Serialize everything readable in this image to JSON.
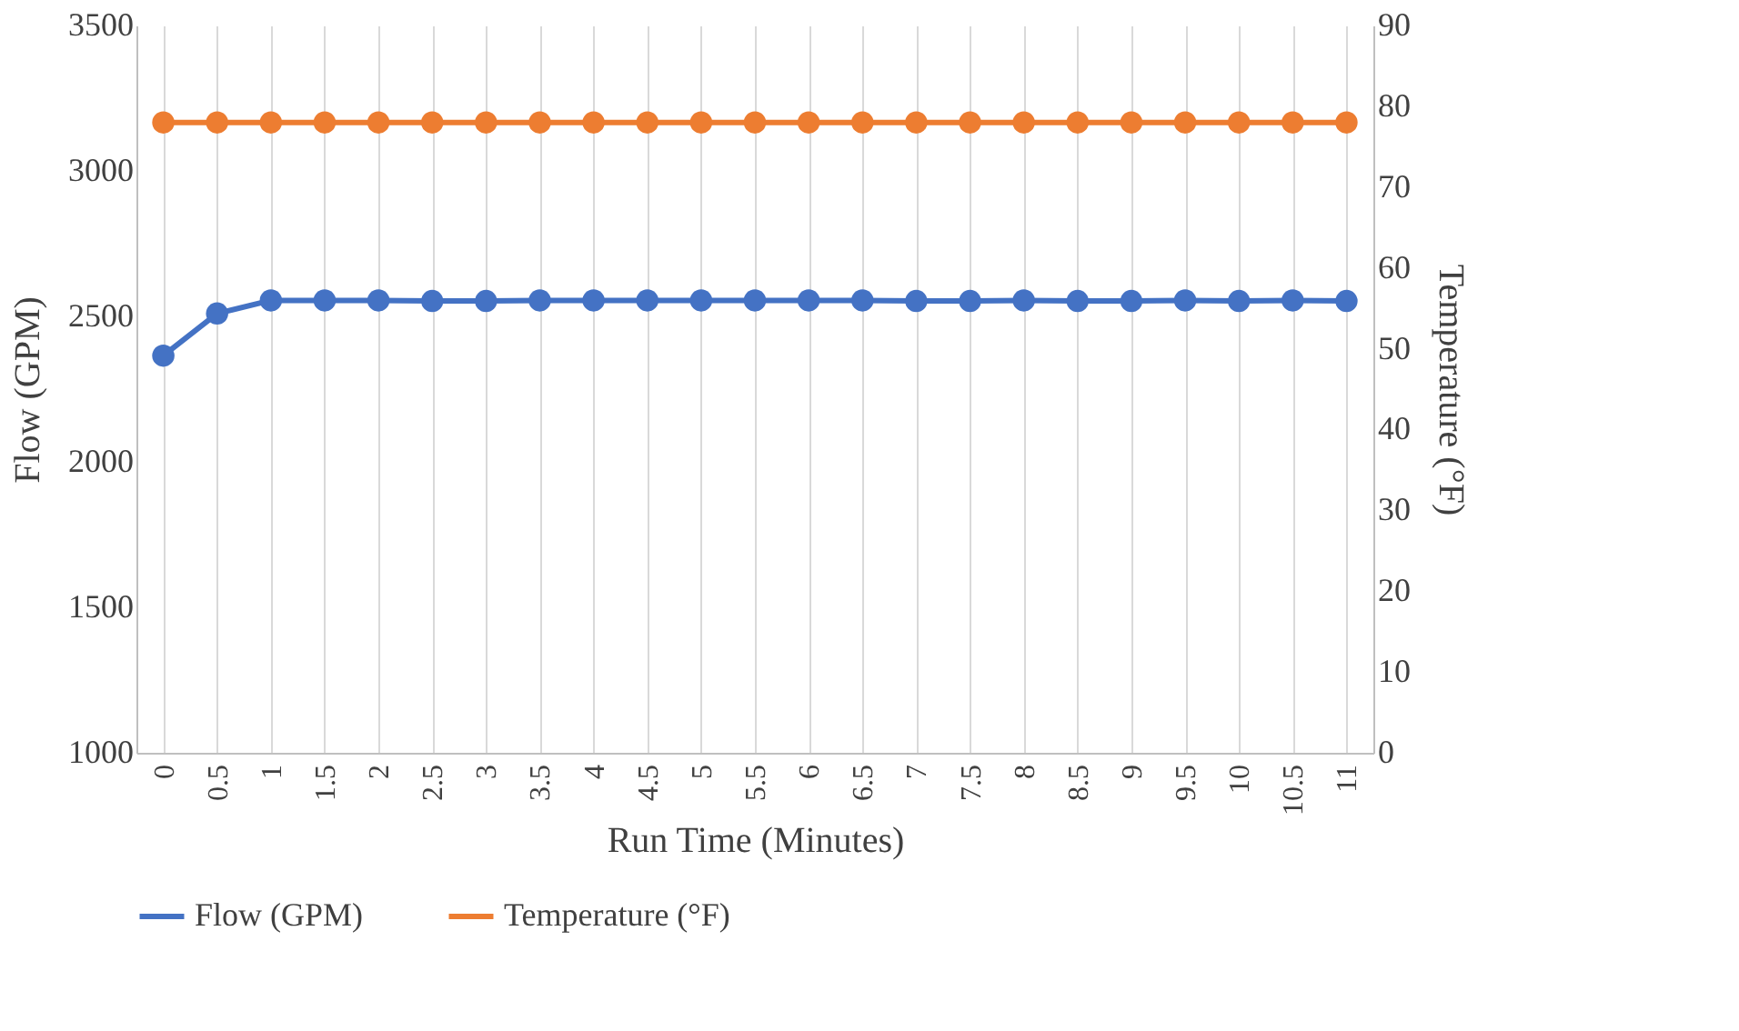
{
  "chart_data": {
    "type": "line",
    "xlabel": "Run Time (Minutes)",
    "ylabel": "Flow (GPM)",
    "y2label": "Temperature (°F)",
    "categories": [
      "0",
      "0.5",
      "1",
      "1.5",
      "2",
      "2.5",
      "3",
      "3.5",
      "4",
      "4.5",
      "5",
      "5.5",
      "6",
      "6.5",
      "7",
      "7.5",
      "8",
      "8.5",
      "9",
      "9.5",
      "10",
      "10.5",
      "11"
    ],
    "series": [
      {
        "name": "Flow (GPM)",
        "color": "#4472c4",
        "values": [
          2365,
          2510,
          2555,
          2555,
          2555,
          2553,
          2553,
          2555,
          2555,
          2555,
          2555,
          2555,
          2555,
          2555,
          2553,
          2553,
          2555,
          2553,
          2553,
          2555,
          2553,
          2555,
          2553
        ]
      },
      {
        "name": "Temperature (°F)",
        "color": "#ed7d31",
        "axis": "y2",
        "values": [
          78,
          78,
          78,
          78,
          78,
          78,
          78,
          78,
          78,
          78,
          78,
          78,
          78,
          78,
          78,
          78,
          78,
          78,
          78,
          78,
          78,
          78,
          78
        ]
      }
    ],
    "ylim": [
      1000,
      3500
    ],
    "yticks": [
      1000,
      1500,
      2000,
      2500,
      3000,
      3500
    ],
    "y2lim": [
      0,
      90
    ],
    "y2ticks": [
      0,
      10,
      20,
      30,
      40,
      50,
      60,
      70,
      80,
      90
    ],
    "grid": "x",
    "legend": "bottom",
    "marker": "circle",
    "line_style": "solid"
  }
}
